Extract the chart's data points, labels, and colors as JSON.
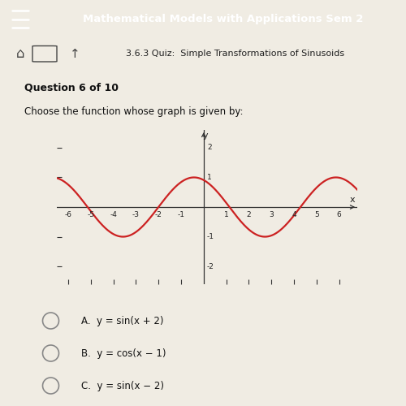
{
  "title_bar": "Mathematical Models with Applications Sem 2",
  "subtitle": "3.6.3 Quiz:  Simple Transformations of Sinusoids",
  "question": "Question 6 of 10",
  "prompt": "Choose the function whose graph is given by:",
  "x_min": -6.5,
  "x_max": 6.8,
  "y_min": -2.6,
  "y_max": 2.6,
  "x_ticks": [
    -6,
    -5,
    -4,
    -3,
    -2,
    -1,
    1,
    2,
    3,
    4,
    5,
    6
  ],
  "y_ticks": [
    -2,
    -1,
    1,
    2
  ],
  "curve_color": "#cc2222",
  "bg_color": "#ede8df",
  "content_bg": "#f0ece3",
  "header_bg": "#1a1a2e",
  "subheader_bg": "#d8d4cc",
  "header_text_color": "#ffffff",
  "subheader_text_color": "#222222",
  "axis_color": "#333333",
  "choices": [
    "A.  y = sin(x + 2)",
    "B.  y = cos(x − 1)",
    "C.  y = sin(x − 2)"
  ]
}
